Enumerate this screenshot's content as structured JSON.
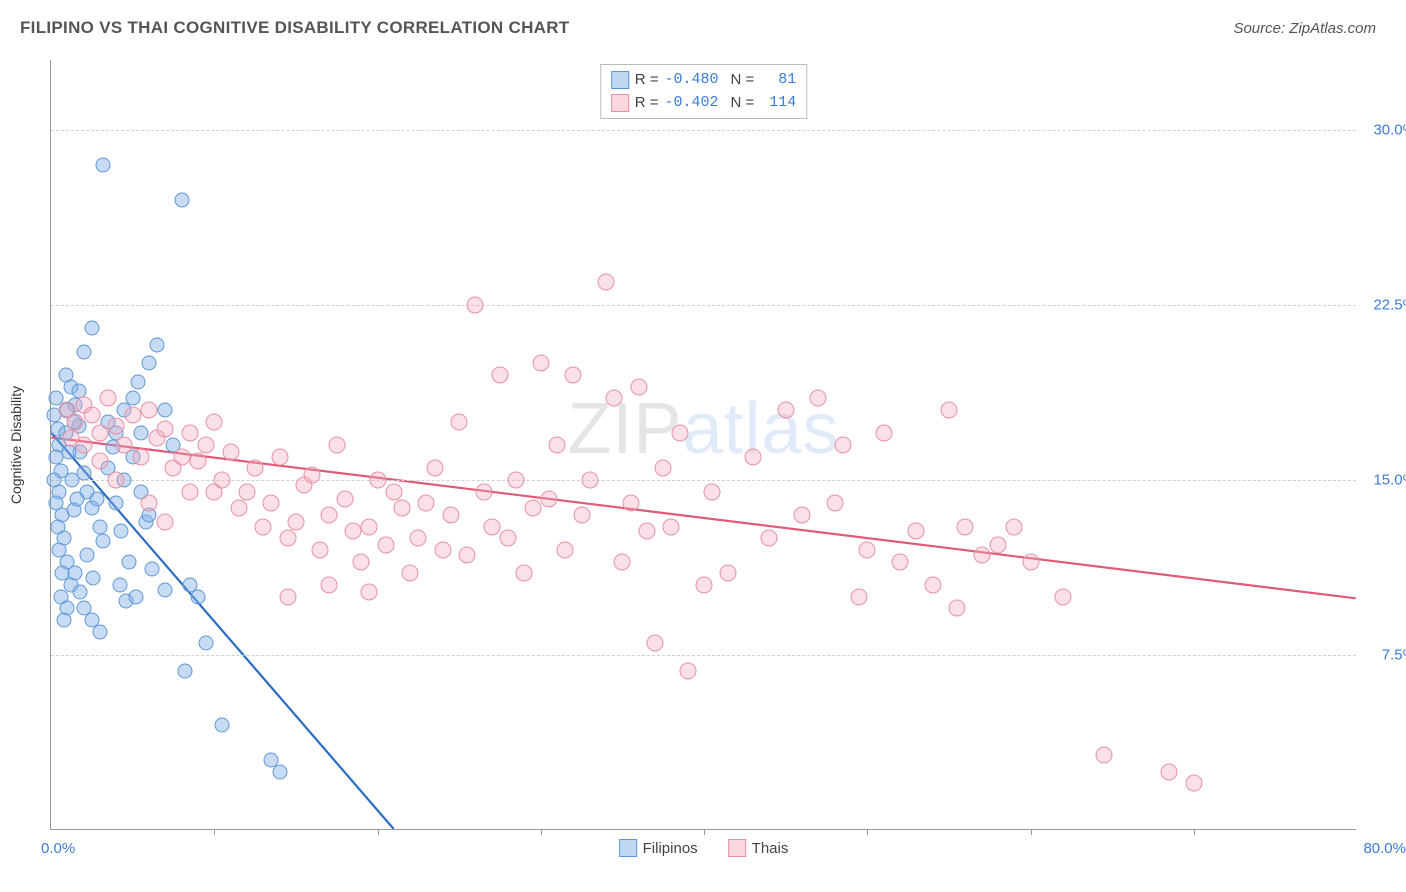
{
  "header": {
    "title": "FILIPINO VS THAI COGNITIVE DISABILITY CORRELATION CHART",
    "source": "Source: ZipAtlas.com"
  },
  "watermark": {
    "part1": "ZIP",
    "part2": "atlas"
  },
  "chart": {
    "type": "scatter",
    "y_axis_label": "Cognitive Disability",
    "background_color": "#ffffff",
    "grid_color": "#d0d0d0",
    "axis_color": "#999999",
    "label_color": "#3a7cd8",
    "label_fontsize": 15,
    "xlim": [
      0,
      80
    ],
    "ylim": [
      0,
      33
    ],
    "x_origin_label": "0.0%",
    "x_max_label": "80.0%",
    "y_ticks": [
      {
        "value": 7.5,
        "label": "7.5%"
      },
      {
        "value": 15.0,
        "label": "15.0%"
      },
      {
        "value": 22.5,
        "label": "22.5%"
      },
      {
        "value": 30.0,
        "label": "30.0%"
      }
    ],
    "x_tick_positions": [
      10,
      20,
      30,
      40,
      50,
      60,
      70
    ],
    "series": [
      {
        "name": "Filipinos",
        "color_fill": "rgba(130,177,230,0.45)",
        "color_stroke": "#5e97d6",
        "marker_size": 15,
        "R": "-0.480",
        "N": "81",
        "trend": {
          "x1": 0,
          "y1": 17.0,
          "x2": 21,
          "y2": 0,
          "stroke": "#2a6bc4",
          "width": 2.2
        },
        "points": [
          [
            0.3,
            18.5
          ],
          [
            0.2,
            17.8
          ],
          [
            0.4,
            17.2
          ],
          [
            0.5,
            16.5
          ],
          [
            0.3,
            16.0
          ],
          [
            0.6,
            15.4
          ],
          [
            0.2,
            15.0
          ],
          [
            0.5,
            14.5
          ],
          [
            0.3,
            14.0
          ],
          [
            0.7,
            13.5
          ],
          [
            0.4,
            13.0
          ],
          [
            0.8,
            12.5
          ],
          [
            0.5,
            12.0
          ],
          [
            1.0,
            11.5
          ],
          [
            0.7,
            11.0
          ],
          [
            1.2,
            10.5
          ],
          [
            0.6,
            10.0
          ],
          [
            1.0,
            9.5
          ],
          [
            0.8,
            9.0
          ],
          [
            1.4,
            13.7
          ],
          [
            1.5,
            18.2
          ],
          [
            1.7,
            17.3
          ],
          [
            1.8,
            16.2
          ],
          [
            2.0,
            15.3
          ],
          [
            2.2,
            14.5
          ],
          [
            2.5,
            13.8
          ],
          [
            2.8,
            14.2
          ],
          [
            3.0,
            13.0
          ],
          [
            3.2,
            12.4
          ],
          [
            3.5,
            15.5
          ],
          [
            3.8,
            16.4
          ],
          [
            4.0,
            14.0
          ],
          [
            4.3,
            12.8
          ],
          [
            4.5,
            15.0
          ],
          [
            4.8,
            11.5
          ],
          [
            5.0,
            18.5
          ],
          [
            5.3,
            19.2
          ],
          [
            5.5,
            17.0
          ],
          [
            5.8,
            13.2
          ],
          [
            6.0,
            20.0
          ],
          [
            6.5,
            20.8
          ],
          [
            7.0,
            18.0
          ],
          [
            7.5,
            16.5
          ],
          [
            8.0,
            27.0
          ],
          [
            8.5,
            10.5
          ],
          [
            9.0,
            10.0
          ],
          [
            2.0,
            9.5
          ],
          [
            2.5,
            9.0
          ],
          [
            3.0,
            8.5
          ],
          [
            1.5,
            11.0
          ],
          [
            1.8,
            10.2
          ],
          [
            2.2,
            11.8
          ],
          [
            2.6,
            10.8
          ],
          [
            4.2,
            10.5
          ],
          [
            4.6,
            9.8
          ],
          [
            5.2,
            10.0
          ],
          [
            6.2,
            11.2
          ],
          [
            0.9,
            17.0
          ],
          [
            1.1,
            16.2
          ],
          [
            1.3,
            15.0
          ],
          [
            1.6,
            14.2
          ],
          [
            8.2,
            6.8
          ],
          [
            9.5,
            8.0
          ],
          [
            10.5,
            4.5
          ],
          [
            13.5,
            3.0
          ],
          [
            14.0,
            2.5
          ],
          [
            3.2,
            28.5
          ],
          [
            2.0,
            20.5
          ],
          [
            2.5,
            21.5
          ],
          [
            1.2,
            19.0
          ],
          [
            0.9,
            19.5
          ],
          [
            1.0,
            18.0
          ],
          [
            1.4,
            17.5
          ],
          [
            1.7,
            18.8
          ],
          [
            3.5,
            17.5
          ],
          [
            4.0,
            17.0
          ],
          [
            4.5,
            18.0
          ],
          [
            5.0,
            16.0
          ],
          [
            5.5,
            14.5
          ],
          [
            6.0,
            13.5
          ],
          [
            7.0,
            10.3
          ]
        ]
      },
      {
        "name": "Thais",
        "color_fill": "rgba(244,169,186,0.35)",
        "color_stroke": "#e891a6",
        "marker_size": 17,
        "R": "-0.402",
        "N": "114",
        "trend": {
          "x1": 0,
          "y1": 16.8,
          "x2": 80,
          "y2": 9.9,
          "stroke": "#e05a7a",
          "width": 2.2
        },
        "points": [
          [
            1.0,
            18.0
          ],
          [
            1.5,
            17.5
          ],
          [
            2.0,
            18.2
          ],
          [
            2.5,
            17.8
          ],
          [
            3.0,
            17.0
          ],
          [
            3.5,
            18.5
          ],
          [
            4.0,
            17.3
          ],
          [
            4.5,
            16.5
          ],
          [
            5.0,
            17.8
          ],
          [
            5.5,
            16.0
          ],
          [
            6.0,
            18.0
          ],
          [
            6.5,
            16.8
          ],
          [
            7.0,
            17.2
          ],
          [
            7.5,
            15.5
          ],
          [
            8.0,
            16.0
          ],
          [
            8.5,
            17.0
          ],
          [
            9.0,
            15.8
          ],
          [
            9.5,
            16.5
          ],
          [
            10.0,
            14.5
          ],
          [
            10.5,
            15.0
          ],
          [
            11.0,
            16.2
          ],
          [
            11.5,
            13.8
          ],
          [
            12.0,
            14.5
          ],
          [
            12.5,
            15.5
          ],
          [
            13.0,
            13.0
          ],
          [
            13.5,
            14.0
          ],
          [
            14.0,
            16.0
          ],
          [
            14.5,
            12.5
          ],
          [
            15.0,
            13.2
          ],
          [
            15.5,
            14.8
          ],
          [
            16.0,
            15.2
          ],
          [
            16.5,
            12.0
          ],
          [
            17.0,
            13.5
          ],
          [
            17.5,
            16.5
          ],
          [
            18.0,
            14.2
          ],
          [
            18.5,
            12.8
          ],
          [
            19.0,
            11.5
          ],
          [
            19.5,
            13.0
          ],
          [
            20.0,
            15.0
          ],
          [
            20.5,
            12.2
          ],
          [
            21.0,
            14.5
          ],
          [
            21.5,
            13.8
          ],
          [
            22.0,
            11.0
          ],
          [
            22.5,
            12.5
          ],
          [
            23.0,
            14.0
          ],
          [
            23.5,
            15.5
          ],
          [
            24.0,
            12.0
          ],
          [
            24.5,
            13.5
          ],
          [
            25.0,
            17.5
          ],
          [
            25.5,
            11.8
          ],
          [
            26.0,
            22.5
          ],
          [
            26.5,
            14.5
          ],
          [
            27.0,
            13.0
          ],
          [
            27.5,
            19.5
          ],
          [
            28.0,
            12.5
          ],
          [
            28.5,
            15.0
          ],
          [
            29.0,
            11.0
          ],
          [
            29.5,
            13.8
          ],
          [
            30.0,
            20.0
          ],
          [
            30.5,
            14.2
          ],
          [
            31.0,
            16.5
          ],
          [
            31.5,
            12.0
          ],
          [
            32.0,
            19.5
          ],
          [
            32.5,
            13.5
          ],
          [
            33.0,
            15.0
          ],
          [
            34.0,
            23.5
          ],
          [
            34.5,
            18.5
          ],
          [
            35.0,
            11.5
          ],
          [
            35.5,
            14.0
          ],
          [
            36.0,
            19.0
          ],
          [
            36.5,
            12.8
          ],
          [
            37.0,
            8.0
          ],
          [
            37.5,
            15.5
          ],
          [
            38.0,
            13.0
          ],
          [
            38.5,
            17.0
          ],
          [
            39.0,
            6.8
          ],
          [
            40.0,
            10.5
          ],
          [
            40.5,
            14.5
          ],
          [
            41.5,
            11.0
          ],
          [
            43.0,
            16.0
          ],
          [
            44.0,
            12.5
          ],
          [
            45.0,
            18.0
          ],
          [
            46.0,
            13.5
          ],
          [
            47.0,
            18.5
          ],
          [
            48.0,
            14.0
          ],
          [
            48.5,
            16.5
          ],
          [
            49.5,
            10.0
          ],
          [
            50.0,
            12.0
          ],
          [
            51.0,
            17.0
          ],
          [
            52.0,
            11.5
          ],
          [
            53.0,
            12.8
          ],
          [
            54.0,
            10.5
          ],
          [
            55.0,
            18.0
          ],
          [
            55.5,
            9.5
          ],
          [
            56.0,
            13.0
          ],
          [
            57.0,
            11.8
          ],
          [
            58.0,
            12.2
          ],
          [
            59.0,
            13.0
          ],
          [
            60.0,
            11.5
          ],
          [
            62.0,
            10.0
          ],
          [
            64.5,
            3.2
          ],
          [
            68.5,
            2.5
          ],
          [
            70.0,
            2.0
          ],
          [
            14.5,
            10.0
          ],
          [
            17.0,
            10.5
          ],
          [
            19.5,
            10.2
          ],
          [
            6.0,
            14.0
          ],
          [
            7.0,
            13.2
          ],
          [
            8.5,
            14.5
          ],
          [
            10.0,
            17.5
          ],
          [
            4.0,
            15.0
          ],
          [
            3.0,
            15.8
          ],
          [
            2.0,
            16.5
          ],
          [
            1.2,
            16.8
          ]
        ]
      }
    ],
    "legend_top": {
      "rows": [
        {
          "swatch": "blue",
          "r_label": "R =",
          "r_val": "-0.480",
          "n_label": "N =",
          "n_val": "81"
        },
        {
          "swatch": "pink",
          "r_label": "R =",
          "r_val": "-0.402",
          "n_label": "N =",
          "n_val": "114"
        }
      ]
    },
    "legend_bottom": {
      "items": [
        {
          "swatch": "blue",
          "label": "Filipinos"
        },
        {
          "swatch": "pink",
          "label": "Thais"
        }
      ]
    }
  }
}
